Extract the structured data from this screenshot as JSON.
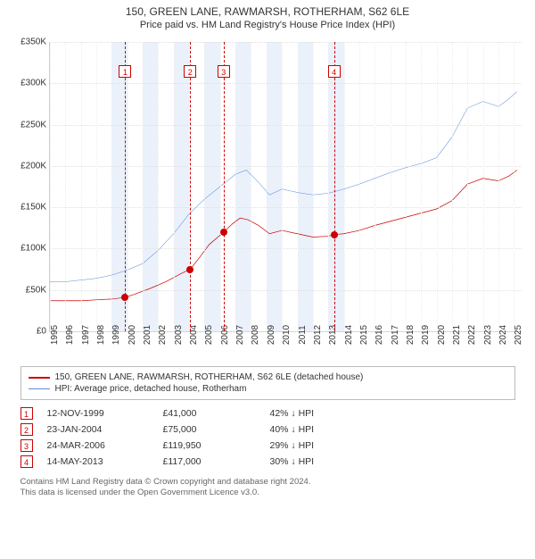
{
  "title": "150, GREEN LANE, RAWMARSH, ROTHERHAM, S62 6LE",
  "subtitle": "Price paid vs. HM Land Registry's House Price Index (HPI)",
  "chart": {
    "type": "line",
    "x_years": [
      1995,
      1996,
      1997,
      1998,
      1999,
      2000,
      2001,
      2002,
      2003,
      2004,
      2005,
      2006,
      2007,
      2008,
      2009,
      2010,
      2011,
      2012,
      2013,
      2014,
      2015,
      2016,
      2017,
      2018,
      2019,
      2020,
      2021,
      2022,
      2023,
      2024,
      2025
    ],
    "ylim": [
      0,
      350000
    ],
    "ytick_step": 50000,
    "ytick_labels": [
      "£0",
      "£50K",
      "£100K",
      "£150K",
      "£200K",
      "£250K",
      "£300K",
      "£350K"
    ],
    "background_color": "#ffffff",
    "grid_color": "#e0e0e0",
    "band_color": "#eaf1fb",
    "band_years": [
      [
        1999,
        2000
      ],
      [
        2001,
        2002
      ],
      [
        2003,
        2004
      ],
      [
        2005,
        2006
      ],
      [
        2007,
        2008
      ],
      [
        2009,
        2010
      ],
      [
        2011,
        2012
      ],
      [
        2013,
        2014
      ]
    ],
    "series": [
      {
        "name": "property",
        "color": "#cc0000",
        "width": 2,
        "label": "150, GREEN LANE, RAWMARSH, ROTHERHAM, S62 6LE (detached house)",
        "points": [
          [
            1995.0,
            37000
          ],
          [
            1996.0,
            37000
          ],
          [
            1997.0,
            37000
          ],
          [
            1998.0,
            38000
          ],
          [
            1999.0,
            39000
          ],
          [
            1999.87,
            41000
          ],
          [
            2000.5,
            45000
          ],
          [
            2001.5,
            52000
          ],
          [
            2002.5,
            60000
          ],
          [
            2003.5,
            70000
          ],
          [
            2004.07,
            75000
          ],
          [
            2004.7,
            90000
          ],
          [
            2005.3,
            105000
          ],
          [
            2006.23,
            119950
          ],
          [
            2006.8,
            130000
          ],
          [
            2007.3,
            137000
          ],
          [
            2007.8,
            135000
          ],
          [
            2008.5,
            128000
          ],
          [
            2009.2,
            118000
          ],
          [
            2010.0,
            122000
          ],
          [
            2011.0,
            118000
          ],
          [
            2012.0,
            114000
          ],
          [
            2013.0,
            115000
          ],
          [
            2013.37,
            117000
          ],
          [
            2014.0,
            118000
          ],
          [
            2015.0,
            122000
          ],
          [
            2016.0,
            128000
          ],
          [
            2017.0,
            133000
          ],
          [
            2018.0,
            138000
          ],
          [
            2019.0,
            143000
          ],
          [
            2020.0,
            148000
          ],
          [
            2021.0,
            158000
          ],
          [
            2022.0,
            178000
          ],
          [
            2023.0,
            185000
          ],
          [
            2024.0,
            182000
          ],
          [
            2024.7,
            188000
          ],
          [
            2025.2,
            195000
          ]
        ]
      },
      {
        "name": "hpi",
        "color": "#5b8fd6",
        "width": 1.5,
        "label": "HPI: Average price, detached house, Rotherham",
        "points": [
          [
            1995.0,
            60000
          ],
          [
            1996.0,
            60000
          ],
          [
            1997.0,
            62000
          ],
          [
            1998.0,
            64000
          ],
          [
            1999.0,
            68000
          ],
          [
            2000.0,
            74000
          ],
          [
            2001.0,
            82000
          ],
          [
            2002.0,
            98000
          ],
          [
            2003.0,
            118000
          ],
          [
            2004.0,
            142000
          ],
          [
            2005.0,
            160000
          ],
          [
            2006.0,
            175000
          ],
          [
            2007.0,
            190000
          ],
          [
            2007.7,
            195000
          ],
          [
            2008.5,
            180000
          ],
          [
            2009.2,
            165000
          ],
          [
            2010.0,
            172000
          ],
          [
            2011.0,
            168000
          ],
          [
            2012.0,
            165000
          ],
          [
            2013.0,
            167000
          ],
          [
            2014.0,
            172000
          ],
          [
            2015.0,
            178000
          ],
          [
            2016.0,
            185000
          ],
          [
            2017.0,
            192000
          ],
          [
            2018.0,
            198000
          ],
          [
            2019.0,
            203000
          ],
          [
            2020.0,
            210000
          ],
          [
            2021.0,
            235000
          ],
          [
            2022.0,
            270000
          ],
          [
            2023.0,
            278000
          ],
          [
            2024.0,
            272000
          ],
          [
            2024.6,
            280000
          ],
          [
            2025.2,
            290000
          ]
        ]
      }
    ],
    "events": [
      {
        "n": "1",
        "year": 1999.87,
        "value": 41000,
        "box_top_pct": 8
      },
      {
        "n": "2",
        "year": 2004.07,
        "value": 75000,
        "box_top_pct": 8
      },
      {
        "n": "3",
        "year": 2006.23,
        "value": 119950,
        "box_top_pct": 8
      },
      {
        "n": "4",
        "year": 2013.37,
        "value": 117000,
        "box_top_pct": 8
      }
    ],
    "xlim": [
      1995,
      2025.5
    ]
  },
  "legend": {
    "rows": [
      {
        "color": "#cc0000",
        "width": 2,
        "label": "150, GREEN LANE, RAWMARSH, ROTHERHAM, S62 6LE (detached house)"
      },
      {
        "color": "#5b8fd6",
        "width": 1.5,
        "label": "HPI: Average price, detached house, Rotherham"
      }
    ]
  },
  "events_table": [
    {
      "n": "1",
      "date": "12-NOV-1999",
      "price": "£41,000",
      "delta": "42% ↓ HPI"
    },
    {
      "n": "2",
      "date": "23-JAN-2004",
      "price": "£75,000",
      "delta": "40% ↓ HPI"
    },
    {
      "n": "3",
      "date": "24-MAR-2006",
      "price": "£119,950",
      "delta": "29% ↓ HPI"
    },
    {
      "n": "4",
      "date": "14-MAY-2013",
      "price": "£117,000",
      "delta": "30% ↓ HPI"
    }
  ],
  "footnote_l1": "Contains HM Land Registry data © Crown copyright and database right 2024.",
  "footnote_l2": "This data is licensed under the Open Government Licence v3.0."
}
